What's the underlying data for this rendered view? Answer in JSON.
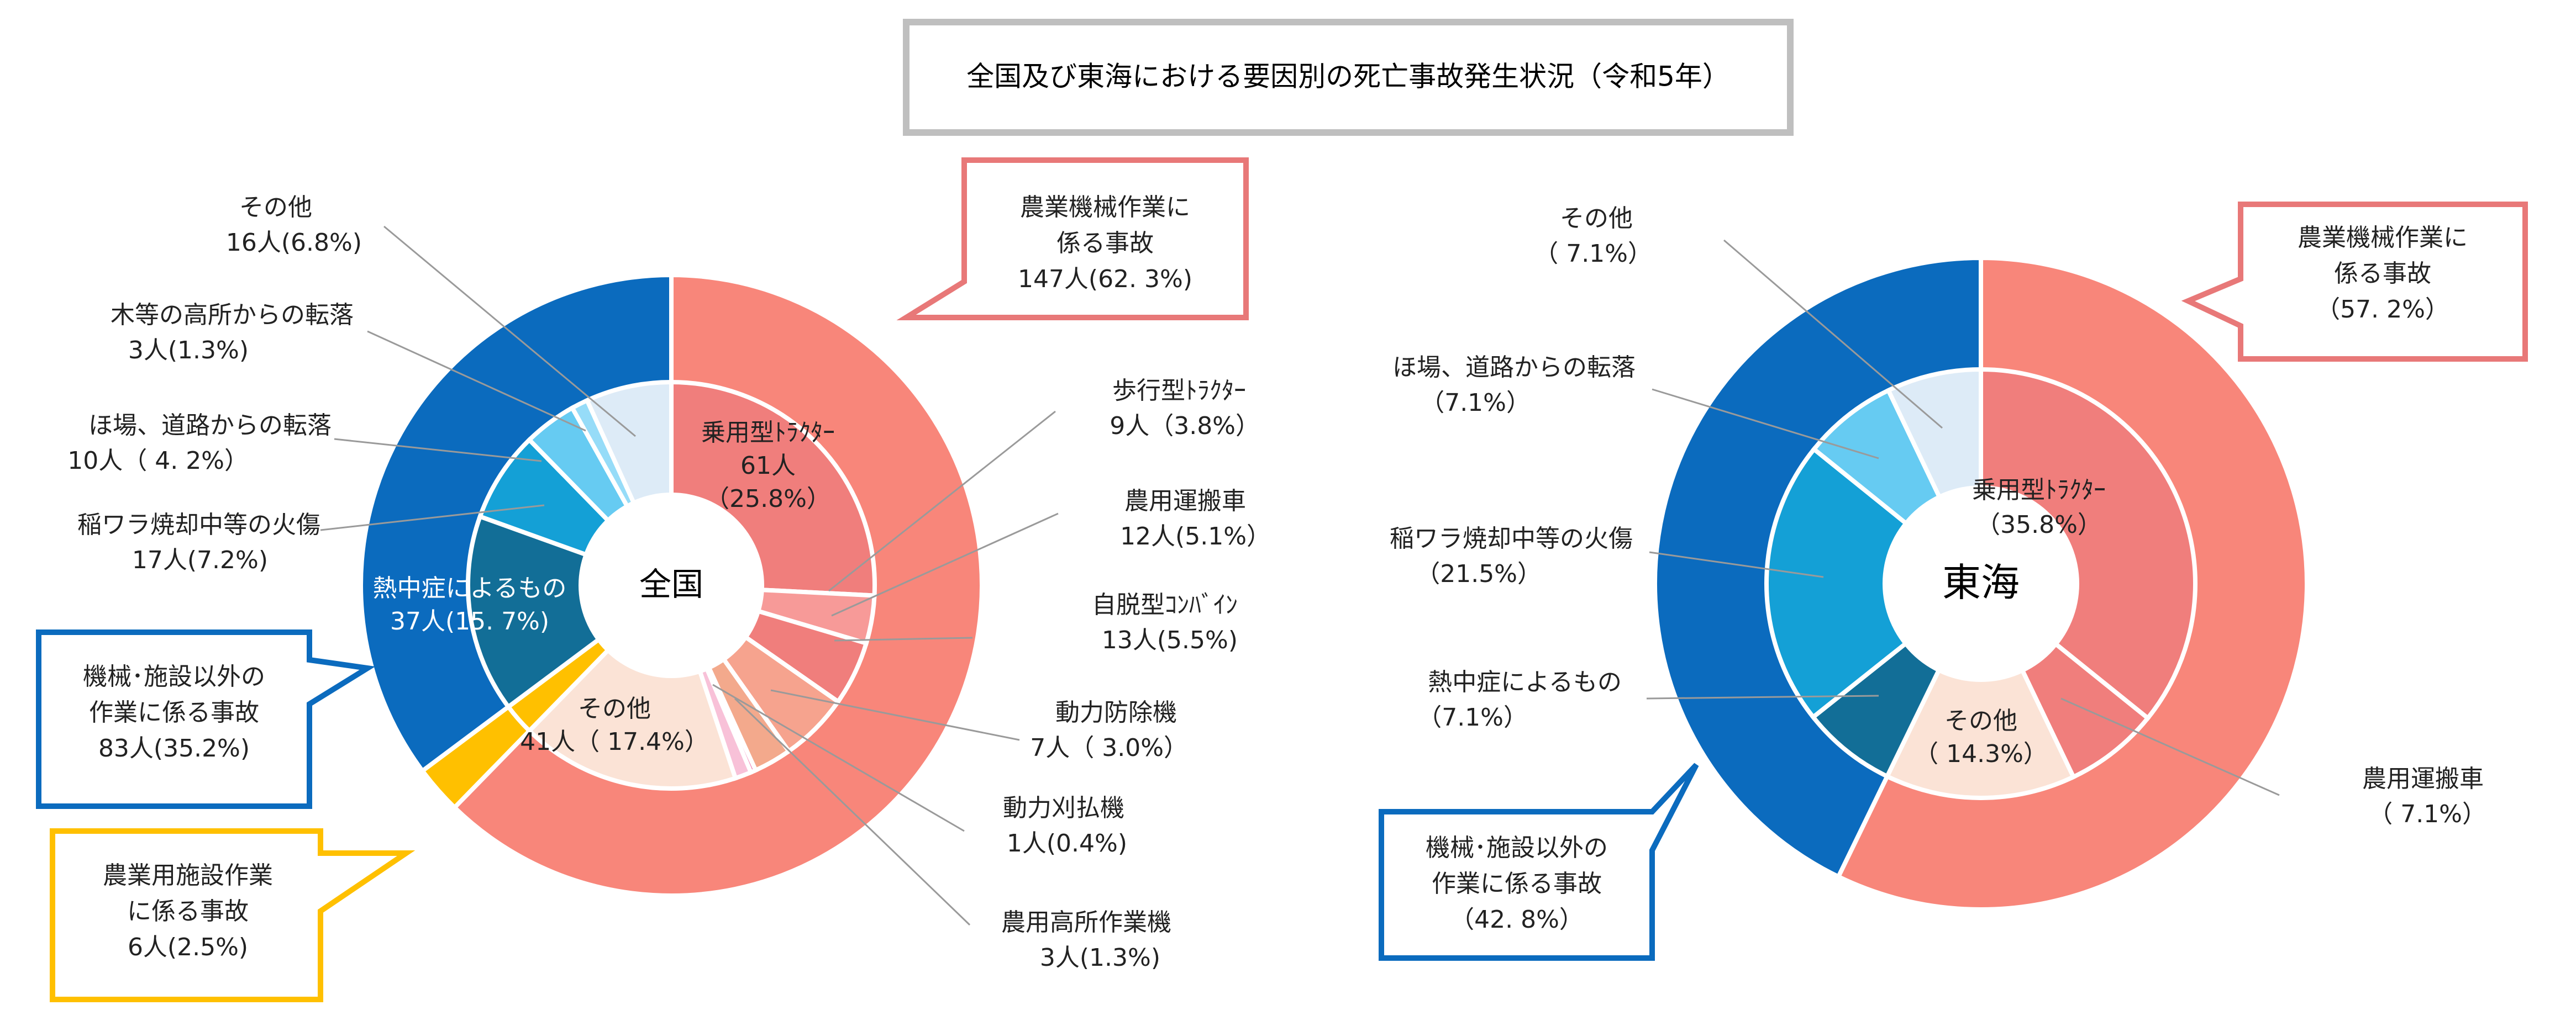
{
  "title": "全国及び東海における要因別の死亡事故発生状況（令和5年）",
  "colors": {
    "machine_outer": "#F8867A",
    "machine_inner": "#F07E7C",
    "facility": "#FFC000",
    "nonmachine_outer": "#0B6BBE",
    "other_inner": "#FBE3D6",
    "heatstroke_inner": "#126E97",
    "burn_inner": "#14A0D6",
    "fall_field_inner": "#66CBF2",
    "fall_tree_inner": "#96DCF8",
    "nonmachine_other_inner": "#DDEBF7",
    "walking_tractor": "#F79A98",
    "combine": "#F6A38E",
    "pest_sprayer": "#F3A98C",
    "mower": "#EC5DA0",
    "high_place_machine": "#F8C1D8",
    "machine_callout_border": "#E87878",
    "nonmachine_callout_border": "#0B6BBE",
    "facility_callout_border": "#FFC000",
    "title_border": "#BFBFBF"
  },
  "chart_data": [
    {
      "type": "pie",
      "variant": "double-donut",
      "center_label": "全国",
      "outer": [
        {
          "name": "農業機械作業に係る事故",
          "value": 62.3,
          "color_key": "machine_outer"
        },
        {
          "name": "農業用施設作業に係る事故",
          "value": 2.5,
          "color_key": "facility"
        },
        {
          "name": "機械・施設以外の作業に係る事故",
          "value": 35.2,
          "color_key": "nonmachine_outer"
        }
      ],
      "inner": [
        {
          "name": "乗用型トラクター",
          "value": 25.8,
          "color_key": "machine_inner"
        },
        {
          "name": "歩行型トラクター",
          "value": 3.8,
          "color_key": "walking_tractor"
        },
        {
          "name": "農用運搬車",
          "value": 5.1,
          "color_key": "machine_inner"
        },
        {
          "name": "自脱型コンバイン",
          "value": 5.5,
          "color_key": "combine"
        },
        {
          "name": "動力防除機",
          "value": 3.0,
          "color_key": "pest_sprayer"
        },
        {
          "name": "動力刈払機",
          "value": 0.4,
          "color_key": "mower"
        },
        {
          "name": "農用高所作業機",
          "value": 1.3,
          "color_key": "high_place_machine"
        },
        {
          "name": "その他",
          "value": 17.4,
          "color_key": "other_inner"
        },
        {
          "name": "農業用施設作業",
          "value": 2.5,
          "color_key": "facility"
        },
        {
          "name": "熱中症によるもの",
          "value": 15.7,
          "color_key": "heatstroke_inner"
        },
        {
          "name": "稲ワラ焼却中等の火傷",
          "value": 7.2,
          "color_key": "burn_inner"
        },
        {
          "name": "ほ場、道路からの転落",
          "value": 4.2,
          "color_key": "fall_field_inner"
        },
        {
          "name": "木等の高所からの転落",
          "value": 1.3,
          "color_key": "fall_tree_inner"
        },
        {
          "name": "その他（機械・施設以外）",
          "value": 6.8,
          "color_key": "nonmachine_other_inner"
        }
      ],
      "labels": {
        "tractor": {
          "l1": "乗用型ﾄﾗｸﾀｰ",
          "l2": "61人",
          "l3": "（25.8%）"
        },
        "walking": {
          "l1": "歩行型ﾄﾗｸﾀｰ",
          "l2": "9人（3.8%）"
        },
        "carrier": {
          "l1": "農用運搬車",
          "l2": "12人(5.1%）"
        },
        "combine": {
          "l1": "自脱型ｺﾝﾊﾞｲﾝ",
          "l2": "13人(5.5%)"
        },
        "sprayer": {
          "l1": "動力防除機",
          "l2": "7人（ 3.0%）"
        },
        "mower": {
          "l1": "動力刈払機",
          "l2": "1人(0.4%)"
        },
        "highplace": {
          "l1": "農用高所作業機",
          "l2": "3人(1.3%)"
        },
        "other_machine": {
          "l1": "その他",
          "l2": "41人（ 17.4%）"
        },
        "heat": {
          "l1": "熱中症によるもの",
          "l2": "37人(15. 7%)"
        },
        "burn": {
          "l1": "稲ワラ焼却中等の火傷",
          "l2": "17人(7.2%)"
        },
        "fall_field": {
          "l1": "ほ場、道路からの転落",
          "l2": "10人（ 4. 2%）"
        },
        "fall_tree": {
          "l1": "木等の高所からの転落",
          "l2": "3人(1.3%)"
        },
        "other_nonmachine": {
          "l1": "その他",
          "l2": "16人(6.8%)"
        }
      },
      "callouts": {
        "machine": {
          "l1": "農業機械作業に",
          "l2": "係る事故",
          "l3": "147人(62. 3%)"
        },
        "nonmachine": {
          "l1": "機械･施設以外の",
          "l2": "作業に係る事故",
          "l3": "83人(35.2%)"
        },
        "facility": {
          "l1": "農業用施設作業",
          "l2": "に係る事故",
          "l3": "6人(2.5%)"
        }
      }
    },
    {
      "type": "pie",
      "variant": "double-donut",
      "center_label": "東海",
      "outer": [
        {
          "name": "農業機械作業に係る事故",
          "value": 57.2,
          "color_key": "machine_outer"
        },
        {
          "name": "機械・施設以外の作業に係る事故",
          "value": 42.8,
          "color_key": "nonmachine_outer"
        }
      ],
      "inner": [
        {
          "name": "乗用型トラクター",
          "value": 35.8,
          "color_key": "machine_inner"
        },
        {
          "name": "農用運搬車",
          "value": 7.1,
          "color_key": "machine_inner"
        },
        {
          "name": "その他",
          "value": 14.3,
          "color_key": "other_inner"
        },
        {
          "name": "熱中症によるもの",
          "value": 7.1,
          "color_key": "heatstroke_inner"
        },
        {
          "name": "稲ワラ焼却中等の火傷",
          "value": 21.5,
          "color_key": "burn_inner"
        },
        {
          "name": "ほ場、道路からの転落",
          "value": 7.1,
          "color_key": "fall_field_inner"
        },
        {
          "name": "その他（機械・施設以外）",
          "value": 7.1,
          "color_key": "nonmachine_other_inner"
        }
      ],
      "labels": {
        "tractor": {
          "l1": "乗用型ﾄﾗｸﾀｰ",
          "l2": "（35.8%）"
        },
        "carrier": {
          "l1": "農用運搬車",
          "l2": "（ 7.1%）"
        },
        "other_machine": {
          "l1": "その他",
          "l2": "（ 14.3%）"
        },
        "heat": {
          "l1": "熱中症によるもの",
          "l2": "（7.1%）"
        },
        "burn": {
          "l1": "稲ワラ焼却中等の火傷",
          "l2": "（21.5%）"
        },
        "fall_field": {
          "l1": "ほ場、道路からの転落",
          "l2": "（7.1%）"
        },
        "other_nonmachine": {
          "l1": "その他",
          "l2": "（ 7.1%）"
        }
      },
      "callouts": {
        "machine": {
          "l1": "農業機械作業に",
          "l2": "係る事故",
          "l3": "（57. 2%）"
        },
        "nonmachine": {
          "l1": "機械･施設以外の",
          "l2": "作業に係る事故",
          "l3": "（42. 8%）"
        }
      }
    }
  ]
}
